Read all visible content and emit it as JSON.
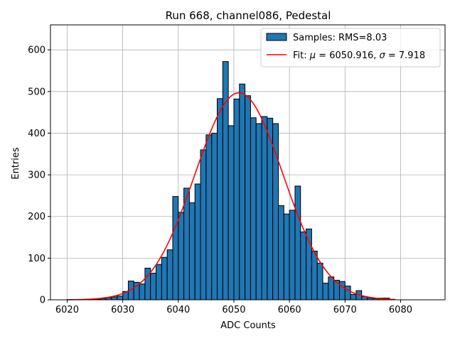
{
  "chart_data": {
    "type": "bar",
    "title": "Run 668, channel086, Pedestal",
    "xlabel": "ADC Counts",
    "ylabel": "Entries",
    "xlim": [
      6017,
      6088
    ],
    "ylim": [
      0,
      660
    ],
    "xticks": [
      6020,
      6030,
      6040,
      6050,
      6060,
      6070,
      6080
    ],
    "yticks": [
      0,
      100,
      200,
      300,
      400,
      500,
      600
    ],
    "grid": true,
    "legend_position": "top-right",
    "bar_color": "#1f77b4",
    "fit_color": "#ff0000",
    "bins": [
      {
        "x": 6025,
        "y": 1
      },
      {
        "x": 6026,
        "y": 3
      },
      {
        "x": 6027,
        "y": 5
      },
      {
        "x": 6028,
        "y": 7
      },
      {
        "x": 6029,
        "y": 9
      },
      {
        "x": 6030,
        "y": 20
      },
      {
        "x": 6031,
        "y": 45
      },
      {
        "x": 6032,
        "y": 42
      },
      {
        "x": 6033,
        "y": 38
      },
      {
        "x": 6034,
        "y": 76
      },
      {
        "x": 6035,
        "y": 64
      },
      {
        "x": 6036,
        "y": 85
      },
      {
        "x": 6037,
        "y": 102
      },
      {
        "x": 6038,
        "y": 120
      },
      {
        "x": 6039,
        "y": 248
      },
      {
        "x": 6040,
        "y": 210
      },
      {
        "x": 6041,
        "y": 268
      },
      {
        "x": 6042,
        "y": 233
      },
      {
        "x": 6043,
        "y": 278
      },
      {
        "x": 6044,
        "y": 360
      },
      {
        "x": 6045,
        "y": 396
      },
      {
        "x": 6046,
        "y": 400
      },
      {
        "x": 6047,
        "y": 483
      },
      {
        "x": 6048,
        "y": 572
      },
      {
        "x": 6049,
        "y": 418
      },
      {
        "x": 6050,
        "y": 482
      },
      {
        "x": 6051,
        "y": 518
      },
      {
        "x": 6052,
        "y": 490
      },
      {
        "x": 6053,
        "y": 437
      },
      {
        "x": 6054,
        "y": 423
      },
      {
        "x": 6055,
        "y": 440
      },
      {
        "x": 6056,
        "y": 436
      },
      {
        "x": 6057,
        "y": 423
      },
      {
        "x": 6058,
        "y": 226
      },
      {
        "x": 6059,
        "y": 206
      },
      {
        "x": 6060,
        "y": 215
      },
      {
        "x": 6061,
        "y": 273
      },
      {
        "x": 6062,
        "y": 163
      },
      {
        "x": 6063,
        "y": 170
      },
      {
        "x": 6064,
        "y": 117
      },
      {
        "x": 6065,
        "y": 88
      },
      {
        "x": 6066,
        "y": 40
      },
      {
        "x": 6067,
        "y": 55
      },
      {
        "x": 6068,
        "y": 47
      },
      {
        "x": 6069,
        "y": 44
      },
      {
        "x": 6070,
        "y": 33
      },
      {
        "x": 6071,
        "y": 13
      },
      {
        "x": 6072,
        "y": 22
      },
      {
        "x": 6073,
        "y": 8
      },
      {
        "x": 6074,
        "y": 4
      },
      {
        "x": 6075,
        "y": 3
      },
      {
        "x": 6076,
        "y": 4
      },
      {
        "x": 6077,
        "y": 4
      },
      {
        "x": 6078,
        "y": 1
      }
    ],
    "bin_width": 1,
    "fit": {
      "type": "gaussian",
      "mu": 6050.916,
      "sigma": 7.918,
      "amplitude": 497,
      "x_range": [
        6020,
        6079
      ]
    },
    "legend": [
      {
        "label": "Samples: RMS=8.03",
        "kind": "patch"
      },
      {
        "label_prefix": "Fit: ",
        "mu_symbol": "μ",
        "mu_text": " = 6050.916, ",
        "sigma_symbol": "σ",
        "sigma_text": " = 7.918",
        "kind": "line"
      }
    ]
  }
}
